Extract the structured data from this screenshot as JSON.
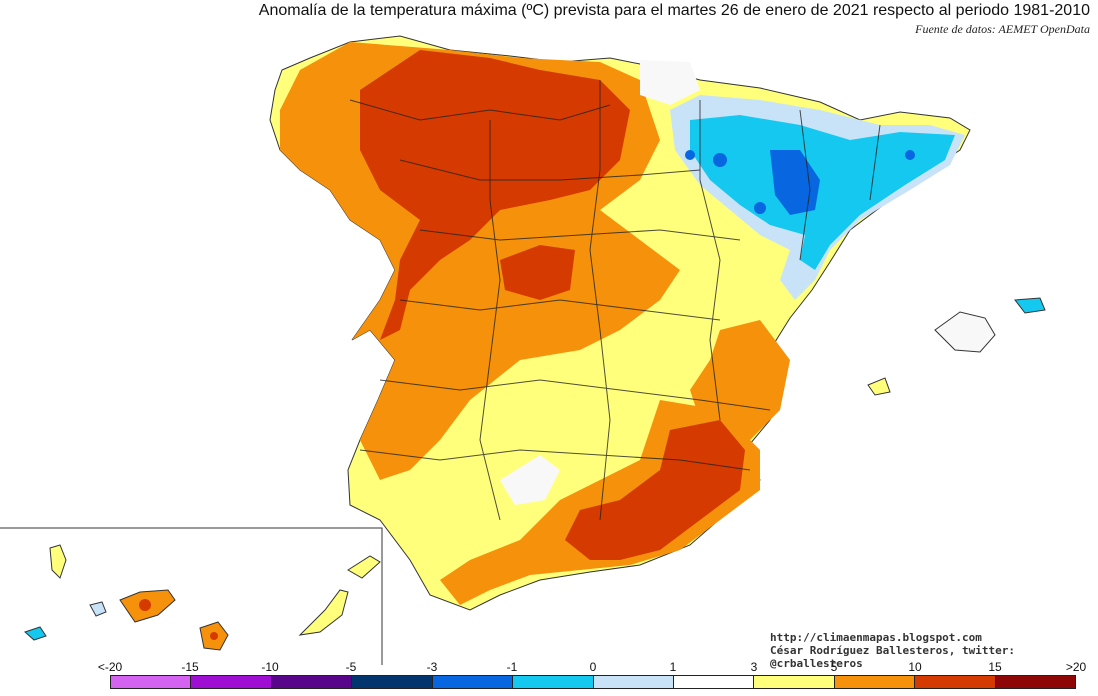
{
  "header": {
    "title": "Anomalía de la temperatura máxima (ºC) prevista para el martes 26 de enero de 2021 respecto al periodo 1981-2010",
    "source": "Fuente de datos: AEMET OpenData"
  },
  "credits": {
    "url": "http://climaenmapas.blogspot.com",
    "author": "César Rodríguez Ballesteros, twitter: @crballesteros"
  },
  "legend": {
    "labels": [
      "<-20",
      "-15",
      "-10",
      "-5",
      "-3",
      "-1",
      "0",
      "1",
      "3",
      "5",
      "10",
      "15",
      ">20"
    ],
    "colors": [
      "#d563f1",
      "#9e0fd3",
      "#58058c",
      "#02356e",
      "#0866e0",
      "#15c8f0",
      "#c8e3f8",
      "#ffffff",
      "#ffff7c",
      "#f5910b",
      "#d53a00",
      "#8e0606",
      "#6b3d00"
    ]
  },
  "map": {
    "colors": {
      "pale_yellow": "#ffff9a",
      "yellow": "#ffff7c",
      "orange": "#f5910b",
      "red": "#d53a00",
      "light_blue": "#c8e3f8",
      "cyan": "#15c8f0",
      "blue": "#0866e0",
      "land_white": "#f8f8f8",
      "border": "#222222"
    }
  }
}
